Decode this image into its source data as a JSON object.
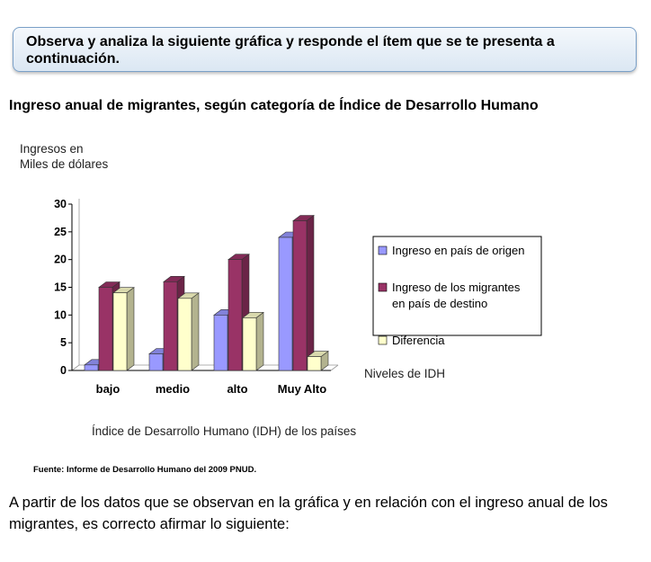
{
  "banner": {
    "text": "Observa y analiza la siguiente gráfica y responde el ítem que se te presenta a continuación."
  },
  "heading": "Ingreso anual de migrantes, según categoría de Índice de Desarrollo Humano",
  "chart_data": {
    "type": "bar",
    "ylabel_lines": [
      "Ingresos en",
      "Miles de dólares"
    ],
    "xlabel": "Índice de Desarrollo Humano (IDH) de los países",
    "x_side_label": "Niveles de IDH",
    "categories": [
      "bajo",
      "medio",
      "alto",
      "Muy Alto"
    ],
    "ylim": [
      0,
      30
    ],
    "yticks": [
      0,
      5,
      10,
      15,
      20,
      25,
      30
    ],
    "legend_position": "right",
    "series": [
      {
        "name": "Ingreso en país de origen",
        "legend_lines": [
          "Ingreso en país de origen"
        ],
        "values": [
          1,
          3,
          10,
          24
        ],
        "color": "#9999ff"
      },
      {
        "name": "Ingreso de los migrantes en país de destino",
        "legend_lines": [
          "Ingreso de los migrantes",
          "en país de destino"
        ],
        "values": [
          15,
          16,
          20,
          27
        ],
        "color": "#993366"
      },
      {
        "name": "Diferencia",
        "legend_lines": [
          "Diferencia"
        ],
        "values": [
          14,
          13,
          9.5,
          2.5
        ],
        "color": "#ffffcc"
      }
    ]
  },
  "source": "Fuente: Informe de Desarrollo Humano del 2009 PNUD.",
  "question": "A partir de los datos que se observan en la gráfica y en relación con el ingreso anual de los migrantes, es correcto afirmar lo siguiente:"
}
